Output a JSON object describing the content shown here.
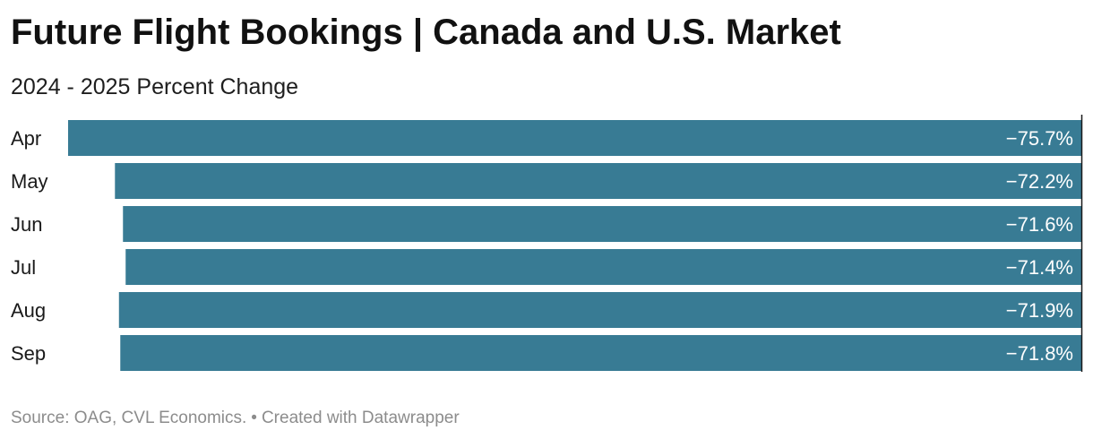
{
  "header": {
    "title": "Future Flight Bookings | Canada and U.S. Market",
    "subtitle": "2024 - 2025 Percent Change"
  },
  "footer": {
    "source": "Source: OAG, CVL Economics.",
    "separator": "•",
    "credit": "Created with Datawrapper"
  },
  "colors": {
    "bar": "#387b94",
    "bar_label": "#ffffff",
    "axis": "#1a1a1a"
  },
  "chart_data": {
    "type": "bar",
    "orientation": "horizontal",
    "categories": [
      "Apr",
      "May",
      "Jun",
      "Jul",
      "Aug",
      "Sep"
    ],
    "values": [
      -75.7,
      -72.2,
      -71.6,
      -71.4,
      -71.9,
      -71.8
    ],
    "value_labels": [
      "−75.7%",
      "−72.2%",
      "−71.6%",
      "−71.4%",
      "−71.9%",
      "−71.8%"
    ],
    "xlim": [
      -75.7,
      0
    ],
    "grid": false,
    "legend": "none"
  }
}
